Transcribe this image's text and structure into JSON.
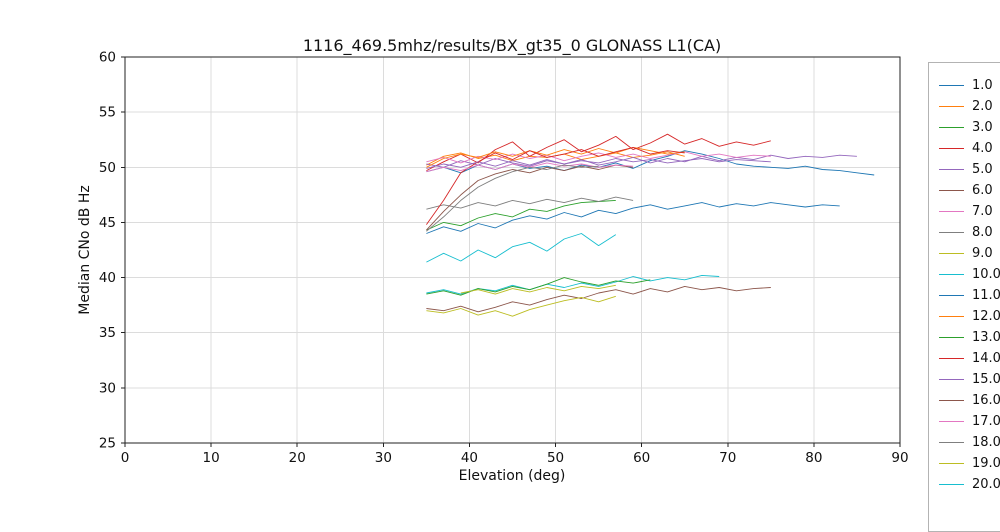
{
  "figure": {
    "title": "1116_469.5mhz/results/BX_gt35_0 GLONASS L1(CA)",
    "xlabel": "Elevation (deg)",
    "ylabel": "Median CNo dB Hz"
  },
  "chart_data": {
    "type": "line",
    "title": "1116_469.5mhz/results/BX_gt35_0 GLONASS L1(CA)",
    "xlabel": "Elevation (deg)",
    "ylabel": "Median CNo dB Hz",
    "xlim": [
      0,
      90
    ],
    "ylim": [
      25,
      60
    ],
    "xticks": [
      0,
      10,
      20,
      30,
      40,
      50,
      60,
      70,
      80,
      90
    ],
    "yticks": [
      25,
      30,
      35,
      40,
      45,
      50,
      55,
      60
    ],
    "grid": true,
    "legend_position": "right-outside",
    "series": [
      {
        "name": "1.0",
        "color": "#1f77b4",
        "x0": 35,
        "dx": 2,
        "y": [
          49.6,
          50.0,
          49.5,
          50.2,
          49.8,
          50.3,
          49.9,
          50.1,
          49.7,
          50.2,
          50.0,
          50.4,
          49.9,
          50.6,
          51.0,
          51.5,
          51.2,
          50.8,
          50.3,
          50.1,
          50.0,
          49.9,
          50.1,
          49.8,
          49.7,
          49.5,
          49.3
        ]
      },
      {
        "name": "2.0",
        "color": "#ff7f0e",
        "x0": 35,
        "dx": 2,
        "y": [
          50.2,
          51.0,
          51.3,
          50.8,
          51.1,
          50.6,
          51.0,
          50.9,
          51.2,
          50.7,
          51.0,
          51.3,
          50.9,
          51.1,
          51.4,
          51.0
        ]
      },
      {
        "name": "3.0",
        "color": "#2ca02c",
        "x0": 35,
        "dx": 2,
        "y": [
          44.3,
          45.0,
          44.7,
          45.4,
          45.8,
          45.5,
          46.2,
          46.0,
          46.5,
          46.8,
          46.9,
          47.0
        ]
      },
      {
        "name": "4.0",
        "color": "#d62728",
        "x0": 35,
        "dx": 2,
        "y": [
          49.7,
          50.5,
          51.2,
          50.4,
          51.6,
          52.3,
          51.0,
          51.8,
          52.5,
          51.4,
          52.0,
          52.8,
          51.6,
          52.2,
          53.0,
          52.1,
          52.6,
          51.9,
          52.3,
          52.0,
          52.4
        ]
      },
      {
        "name": "5.0",
        "color": "#9467bd",
        "x0": 35,
        "dx": 2,
        "y": [
          50.3,
          50.0,
          50.6,
          50.2,
          50.8,
          50.4,
          50.1,
          50.6,
          50.3,
          50.7,
          50.2,
          50.5,
          50.9,
          50.4,
          50.8,
          50.5,
          51.0,
          50.6,
          50.9,
          50.7,
          51.1,
          50.8,
          51.0,
          50.9,
          51.1,
          51.0
        ]
      },
      {
        "name": "6.0",
        "color": "#8c564b",
        "x0": 35,
        "dx": 2,
        "y": [
          37.2,
          37.0,
          37.4,
          36.9,
          37.3,
          37.8,
          37.5,
          38.0,
          38.4,
          38.1,
          38.6,
          38.9,
          38.5,
          39.0,
          38.7,
          39.2,
          38.9,
          39.1,
          38.8,
          39.0,
          39.1
        ]
      },
      {
        "name": "7.0",
        "color": "#e377c2",
        "x0": 35,
        "dx": 2,
        "y": [
          50.5,
          50.9,
          50.4,
          51.0,
          50.7,
          51.2,
          50.8,
          51.1,
          50.6,
          51.0,
          51.3,
          50.9,
          51.2,
          50.8,
          51.1,
          51.4,
          51.0,
          51.2,
          50.9,
          51.1,
          51.0
        ]
      },
      {
        "name": "8.0",
        "color": "#7f7f7f",
        "x0": 35,
        "dx": 2,
        "y": [
          46.2,
          46.6,
          46.3,
          46.8,
          46.5,
          47.0,
          46.7,
          47.1,
          46.8,
          47.2,
          46.9,
          47.3,
          47.0
        ]
      },
      {
        "name": "9.0",
        "color": "#bcbd22",
        "x0": 35,
        "dx": 2,
        "y": [
          37.0,
          36.8,
          37.2,
          36.6,
          37.0,
          36.5,
          37.1,
          37.5,
          37.9,
          38.2,
          37.8,
          38.3
        ]
      },
      {
        "name": "10.0",
        "color": "#17becf",
        "x0": 35,
        "dx": 2,
        "y": [
          38.6,
          38.9,
          38.5,
          39.0,
          38.8,
          39.3,
          38.9,
          39.4,
          39.1,
          39.5,
          39.2,
          39.6,
          40.1,
          39.7,
          40.0,
          39.8,
          40.2,
          40.1
        ]
      },
      {
        "name": "11.0",
        "color": "#1f77b4",
        "x0": 35,
        "dx": 2,
        "y": [
          44.0,
          44.6,
          44.2,
          44.9,
          44.5,
          45.2,
          45.6,
          45.3,
          45.9,
          45.5,
          46.1,
          45.8,
          46.3,
          46.6,
          46.2,
          46.5,
          46.8,
          46.4,
          46.7,
          46.5,
          46.8,
          46.6,
          46.4,
          46.6,
          46.5
        ]
      },
      {
        "name": "12.0",
        "color": "#ff7f0e",
        "x0": 35,
        "dx": 2,
        "y": [
          50.0,
          50.8,
          51.2,
          50.9,
          51.4,
          51.0,
          51.5,
          51.1,
          51.6,
          51.2,
          51.7,
          51.3,
          51.8,
          51.5,
          51.2,
          51.4
        ]
      },
      {
        "name": "13.0",
        "color": "#2ca02c",
        "x0": 35,
        "dx": 2,
        "y": [
          38.5,
          38.8,
          38.4,
          39.0,
          38.7,
          39.2,
          38.9,
          39.4,
          40.0,
          39.6,
          39.3,
          39.7,
          39.5,
          39.8
        ]
      },
      {
        "name": "14.0",
        "color": "#d62728",
        "x0": 35,
        "dx": 2,
        "y": [
          44.8,
          47.0,
          49.5,
          50.5,
          51.3,
          50.7,
          51.5,
          50.9,
          51.2,
          51.6,
          51.0,
          51.4,
          51.8,
          51.2,
          51.5,
          51.3
        ]
      },
      {
        "name": "15.0",
        "color": "#9467bd",
        "x0": 35,
        "dx": 2,
        "y": [
          49.9,
          50.3,
          50.0,
          50.5,
          50.1,
          50.6,
          50.2,
          50.7,
          50.3,
          50.6,
          50.4,
          50.8,
          50.5,
          50.7,
          50.4,
          50.6,
          50.8,
          50.5,
          50.7,
          50.6,
          50.5
        ]
      },
      {
        "name": "16.0",
        "color": "#8c564b",
        "x0": 35,
        "dx": 2,
        "y": [
          44.3,
          46.0,
          47.5,
          48.8,
          49.4,
          49.8,
          49.5,
          50.0,
          49.7,
          50.1,
          49.8,
          50.2,
          50.0
        ]
      },
      {
        "name": "17.0",
        "color": "#e377c2",
        "x0": 35,
        "dx": 2,
        "y": [
          49.6,
          50.0,
          49.7,
          50.2,
          49.8,
          50.3,
          50.0,
          50.4,
          50.1,
          50.3,
          50.0,
          50.2,
          50.1
        ]
      },
      {
        "name": "18.0",
        "color": "#7f7f7f",
        "x0": 35,
        "dx": 2,
        "y": [
          44.2,
          45.5,
          47.0,
          48.2,
          49.0,
          49.6,
          50.0,
          49.8,
          50.2,
          50.0,
          50.1
        ]
      },
      {
        "name": "19.0",
        "color": "#bcbd22",
        "x0": 39,
        "dx": 2,
        "y": [
          38.6,
          38.9,
          38.5,
          39.0,
          38.7,
          39.1,
          38.8,
          39.2,
          39.0,
          39.3
        ]
      },
      {
        "name": "20.0",
        "color": "#17becf",
        "x0": 35,
        "dx": 2,
        "y": [
          41.4,
          42.2,
          41.5,
          42.5,
          41.8,
          42.8,
          43.2,
          42.4,
          43.5,
          44.0,
          42.9,
          43.9
        ]
      }
    ]
  }
}
